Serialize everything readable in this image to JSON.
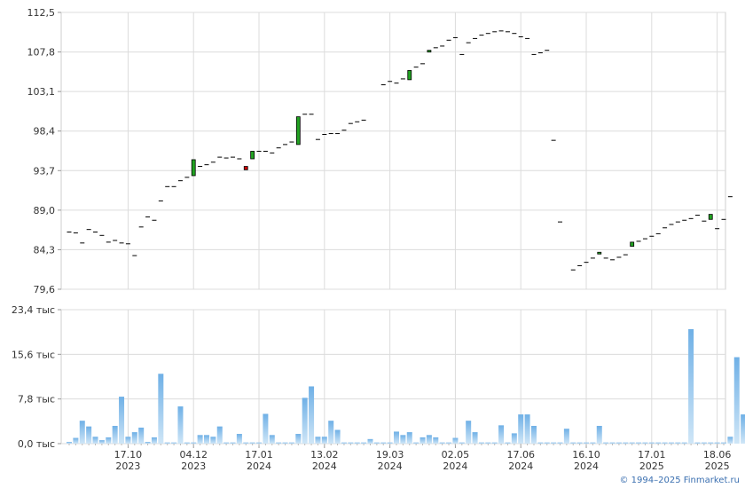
{
  "chart_data": [
    {
      "type": "candlestick",
      "title": "",
      "ylim": [
        79.6,
        112.5
      ],
      "y_ticks": [
        "112,5",
        "107,8",
        "103,1",
        "98,4",
        "93,7",
        "89,0",
        "84,3",
        "79,6"
      ],
      "y_tick_values": [
        112.5,
        107.8,
        103.1,
        98.4,
        93.7,
        89.0,
        84.3,
        79.6
      ],
      "colors": {
        "up": "#22a322",
        "down": "#cc0000",
        "flat": "#000000"
      },
      "points": [
        {
          "i": 0,
          "o": 86.4,
          "c": 86.4
        },
        {
          "i": 1,
          "o": 86.3,
          "c": 86.3
        },
        {
          "i": 2,
          "o": 85.1,
          "c": 85.1
        },
        {
          "i": 3,
          "o": 86.7,
          "c": 86.7
        },
        {
          "i": 4,
          "o": 86.4,
          "c": 86.4
        },
        {
          "i": 5,
          "o": 86.0,
          "c": 86.0
        },
        {
          "i": 6,
          "o": 85.2,
          "c": 85.2
        },
        {
          "i": 7,
          "o": 85.4,
          "c": 85.4
        },
        {
          "i": 8,
          "o": 85.1,
          "c": 85.1
        },
        {
          "i": 9,
          "o": 85.0,
          "c": 85.0
        },
        {
          "i": 10,
          "o": 83.6,
          "c": 83.6
        },
        {
          "i": 11,
          "o": 87.0,
          "c": 87.0
        },
        {
          "i": 12,
          "o": 88.2,
          "c": 88.2
        },
        {
          "i": 13,
          "o": 87.8,
          "c": 87.8
        },
        {
          "i": 14,
          "o": 90.1,
          "c": 90.1
        },
        {
          "i": 15,
          "o": 91.8,
          "c": 91.8
        },
        {
          "i": 16,
          "o": 91.8,
          "c": 91.8
        },
        {
          "i": 17,
          "o": 92.5,
          "c": 92.5
        },
        {
          "i": 18,
          "o": 92.9,
          "c": 92.9
        },
        {
          "i": 19,
          "o": 93.1,
          "c": 95.0
        },
        {
          "i": 20,
          "o": 94.2,
          "c": 94.2
        },
        {
          "i": 21,
          "o": 94.4,
          "c": 94.4
        },
        {
          "i": 22,
          "o": 94.7,
          "c": 94.7
        },
        {
          "i": 23,
          "o": 95.3,
          "c": 95.3
        },
        {
          "i": 24,
          "o": 95.2,
          "c": 95.2
        },
        {
          "i": 25,
          "o": 95.3,
          "c": 95.3
        },
        {
          "i": 26,
          "o": 95.1,
          "c": 95.1
        },
        {
          "i": 27,
          "o": 94.2,
          "c": 93.8
        },
        {
          "i": 28,
          "o": 95.1,
          "c": 96.0
        },
        {
          "i": 29,
          "o": 96.0,
          "c": 96.0
        },
        {
          "i": 30,
          "o": 96.0,
          "c": 96.0
        },
        {
          "i": 31,
          "o": 95.8,
          "c": 95.8
        },
        {
          "i": 32,
          "o": 96.4,
          "c": 96.4
        },
        {
          "i": 33,
          "o": 96.8,
          "c": 96.8
        },
        {
          "i": 34,
          "o": 97.1,
          "c": 97.1
        },
        {
          "i": 35,
          "o": 96.8,
          "c": 100.1
        },
        {
          "i": 36,
          "o": 100.4,
          "c": 100.4
        },
        {
          "i": 37,
          "o": 100.4,
          "c": 100.4
        },
        {
          "i": 38,
          "o": 97.4,
          "c": 97.4
        },
        {
          "i": 39,
          "o": 98.0,
          "c": 98.0
        },
        {
          "i": 40,
          "o": 98.1,
          "c": 98.1
        },
        {
          "i": 41,
          "o": 98.1,
          "c": 98.1
        },
        {
          "i": 42,
          "o": 98.5,
          "c": 98.5
        },
        {
          "i": 43,
          "o": 99.3,
          "c": 99.3
        },
        {
          "i": 44,
          "o": 99.5,
          "c": 99.5
        },
        {
          "i": 45,
          "o": 99.7,
          "c": 99.7
        },
        {
          "i": 46,
          "o": null,
          "c": null
        },
        {
          "i": 47,
          "o": null,
          "c": null
        },
        {
          "i": 48,
          "o": 103.9,
          "c": 103.9
        },
        {
          "i": 49,
          "o": 104.3,
          "c": 104.3
        },
        {
          "i": 50,
          "o": 104.1,
          "c": 104.1
        },
        {
          "i": 51,
          "o": 104.6,
          "c": 104.6
        },
        {
          "i": 52,
          "o": 104.5,
          "c": 105.6
        },
        {
          "i": 53,
          "o": 106.0,
          "c": 106.0
        },
        {
          "i": 54,
          "o": 106.4,
          "c": 106.4
        },
        {
          "i": 55,
          "o": 107.8,
          "c": 108.0
        },
        {
          "i": 56,
          "o": 108.3,
          "c": 108.3
        },
        {
          "i": 57,
          "o": 108.5,
          "c": 108.5
        },
        {
          "i": 58,
          "o": 109.2,
          "c": 109.2
        },
        {
          "i": 59,
          "o": 109.5,
          "c": 109.5
        },
        {
          "i": 60,
          "o": 107.5,
          "c": 107.5
        },
        {
          "i": 61,
          "o": 108.9,
          "c": 108.9
        },
        {
          "i": 62,
          "o": 109.4,
          "c": 109.4
        },
        {
          "i": 63,
          "o": 109.8,
          "c": 109.8
        },
        {
          "i": 64,
          "o": 110.0,
          "c": 110.0
        },
        {
          "i": 65,
          "o": 110.2,
          "c": 110.2
        },
        {
          "i": 66,
          "o": 110.3,
          "c": 110.3
        },
        {
          "i": 67,
          "o": 110.2,
          "c": 110.2
        },
        {
          "i": 68,
          "o": 110.0,
          "c": 110.0
        },
        {
          "i": 69,
          "o": 109.6,
          "c": 109.6
        },
        {
          "i": 70,
          "o": 109.4,
          "c": 109.4
        },
        {
          "i": 71,
          "o": 107.5,
          "c": 107.5
        },
        {
          "i": 72,
          "o": 107.7,
          "c": 107.7
        },
        {
          "i": 73,
          "o": 108.0,
          "c": 108.0
        },
        {
          "i": 74,
          "o": 97.3,
          "c": 97.3
        },
        {
          "i": 75,
          "o": 87.6,
          "c": 87.6
        },
        {
          "i": 76,
          "o": null,
          "c": null
        },
        {
          "i": 77,
          "o": 81.9,
          "c": 81.9
        },
        {
          "i": 78,
          "o": 82.4,
          "c": 82.4
        },
        {
          "i": 79,
          "o": 82.8,
          "c": 82.8
        },
        {
          "i": 80,
          "o": 83.3,
          "c": 83.3
        },
        {
          "i": 81,
          "o": 83.8,
          "c": 84.0
        },
        {
          "i": 82,
          "o": 83.3,
          "c": 83.3
        },
        {
          "i": 83,
          "o": 83.1,
          "c": 83.1
        },
        {
          "i": 84,
          "o": 83.4,
          "c": 83.4
        },
        {
          "i": 85,
          "o": 83.7,
          "c": 83.7
        },
        {
          "i": 86,
          "o": 84.7,
          "c": 85.2
        },
        {
          "i": 87,
          "o": 85.3,
          "c": 85.3
        },
        {
          "i": 88,
          "o": 85.6,
          "c": 85.6
        },
        {
          "i": 89,
          "o": 85.9,
          "c": 85.9
        },
        {
          "i": 90,
          "o": 86.2,
          "c": 86.2
        },
        {
          "i": 91,
          "o": 86.9,
          "c": 86.9
        },
        {
          "i": 92,
          "o": 87.3,
          "c": 87.3
        },
        {
          "i": 93,
          "o": 87.6,
          "c": 87.6
        },
        {
          "i": 94,
          "o": 87.8,
          "c": 87.8
        },
        {
          "i": 95,
          "o": 88.0,
          "c": 88.0
        },
        {
          "i": 96,
          "o": 88.4,
          "c": 88.4
        },
        {
          "i": 97,
          "o": 87.7,
          "c": 87.7
        },
        {
          "i": 98,
          "o": 87.9,
          "c": 88.5
        },
        {
          "i": 99,
          "o": 86.8,
          "c": 86.8
        },
        {
          "i": 100,
          "o": 87.9,
          "c": 87.9
        },
        {
          "i": 101,
          "o": 90.6,
          "c": 90.6
        }
      ]
    },
    {
      "type": "bar",
      "title": "",
      "ylim": [
        0,
        23.4
      ],
      "y_ticks": [
        "23,4 тыс",
        "15,6 тыс",
        "7,8 тыс",
        "0,0 тыс"
      ],
      "y_tick_values": [
        23.4,
        15.6,
        7.8,
        0.0
      ],
      "unit": "тыс",
      "values": [
        0.3,
        1.0,
        4.0,
        3.0,
        1.2,
        0.6,
        1.1,
        3.1,
        8.2,
        1.2,
        2.0,
        2.8,
        0.3,
        1.1,
        12.2,
        0.2,
        0.2,
        6.5,
        0.2,
        0.2,
        1.5,
        1.5,
        1.2,
        3.0,
        0.2,
        0.2,
        1.7,
        0.2,
        0.2,
        0.2,
        5.2,
        1.5,
        0.2,
        0.2,
        0.2,
        1.7,
        8.0,
        10.0,
        1.2,
        1.2,
        4.0,
        2.4,
        0.2,
        0.2,
        0.2,
        0.2,
        0.8,
        0.2,
        0.2,
        0.2,
        2.1,
        1.5,
        2.0,
        0.2,
        1.1,
        1.5,
        1.1,
        0.2,
        0.2,
        1.0,
        0.2,
        4.0,
        2.0,
        0.2,
        0.2,
        0.2,
        3.2,
        0.2,
        1.8,
        5.1,
        5.1,
        3.1,
        0.2,
        0.2,
        0.2,
        0.2,
        2.6,
        0.2,
        0.2,
        0.2,
        0.2,
        3.1,
        0.2,
        0.2,
        0.2,
        0.2,
        0.2,
        0.2,
        0.2,
        0.2,
        0.2,
        0.2,
        0.2,
        0.2,
        0.2,
        20.0,
        0.2,
        0.2,
        0.2,
        0.2,
        0.2,
        1.2,
        15.1,
        5.1
      ]
    }
  ],
  "x_axis": {
    "ticks": [
      {
        "i": 9,
        "line1": "17.10",
        "line2": "2023"
      },
      {
        "i": 19,
        "line1": "04.12",
        "line2": "2023"
      },
      {
        "i": 29,
        "line1": "17.01",
        "line2": "2024"
      },
      {
        "i": 39,
        "line1": "13.02",
        "line2": "2024"
      },
      {
        "i": 49,
        "line1": "19.03",
        "line2": "2024"
      },
      {
        "i": 59,
        "line1": "02.05",
        "line2": "2024"
      },
      {
        "i": 69,
        "line1": "17.06",
        "line2": "2024"
      },
      {
        "i": 79,
        "line1": "16.10",
        "line2": "2024"
      },
      {
        "i": 89,
        "line1": "17.01",
        "line2": "2025"
      },
      {
        "i": 99,
        "line1": "18.06",
        "line2": "2025"
      }
    ]
  },
  "credit": "© 1994–2025 Finmarket.ru"
}
